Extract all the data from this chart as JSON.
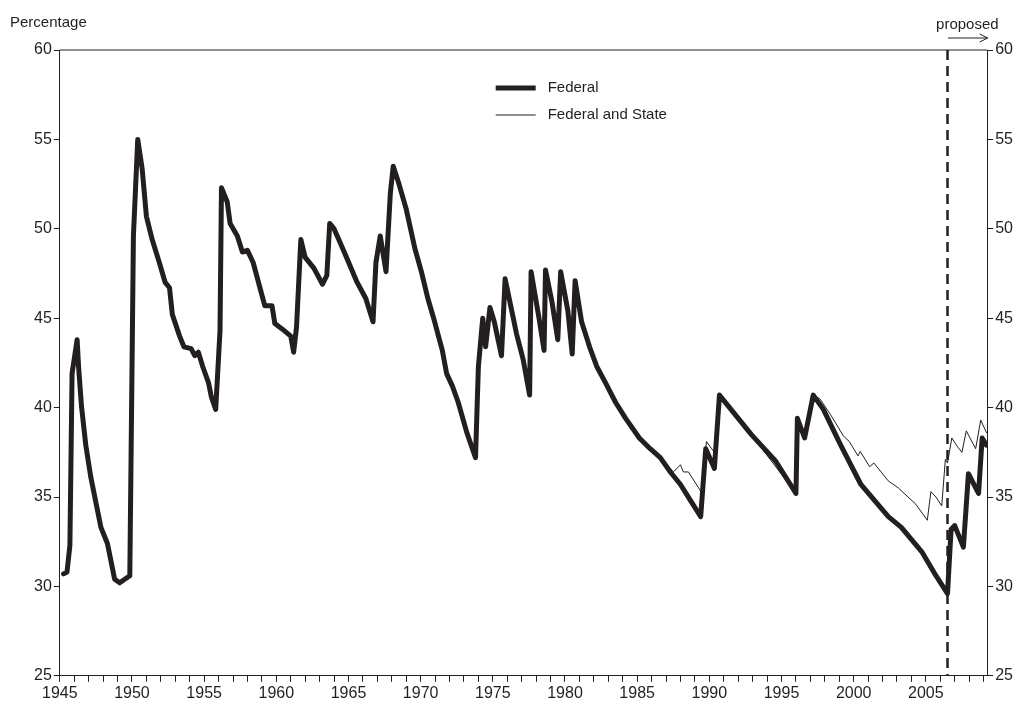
{
  "chart_data": {
    "type": "line",
    "ylabel": "Percentage",
    "xlim": [
      1945,
      2009.25
    ],
    "xticks": [
      1945,
      {
        "value": 1946,
        "label": null
      },
      {
        "value": 1947,
        "label": null
      },
      {
        "value": 1948,
        "label": null
      },
      {
        "value": 1949,
        "label": null
      },
      1950,
      {
        "value": 1951,
        "label": null
      },
      {
        "value": 1952,
        "label": null
      },
      {
        "value": 1953,
        "label": null
      },
      {
        "value": 1954,
        "label": null
      },
      1955,
      {
        "value": 1956,
        "label": null
      },
      {
        "value": 1957,
        "label": null
      },
      {
        "value": 1958,
        "label": null
      },
      {
        "value": 1959,
        "label": null
      },
      1960,
      {
        "value": 1961,
        "label": null
      },
      {
        "value": 1962,
        "label": null
      },
      {
        "value": 1963,
        "label": null
      },
      {
        "value": 1964,
        "label": null
      },
      1965,
      {
        "value": 1966,
        "label": null
      },
      {
        "value": 1967,
        "label": null
      },
      {
        "value": 1968,
        "label": null
      },
      {
        "value": 1969,
        "label": null
      },
      1970,
      {
        "value": 1971,
        "label": null
      },
      {
        "value": 1972,
        "label": null
      },
      {
        "value": 1973,
        "label": null
      },
      {
        "value": 1974,
        "label": null
      },
      1975,
      {
        "value": 1976,
        "label": null
      },
      {
        "value": 1977,
        "label": null
      },
      {
        "value": 1978,
        "label": null
      },
      {
        "value": 1979,
        "label": null
      },
      1980,
      {
        "value": 1981,
        "label": null
      },
      {
        "value": 1982,
        "label": null
      },
      {
        "value": 1983,
        "label": null
      },
      {
        "value": 1984,
        "label": null
      },
      1985,
      {
        "value": 1986,
        "label": null
      },
      {
        "value": 1987,
        "label": null
      },
      {
        "value": 1988,
        "label": null
      },
      {
        "value": 1989,
        "label": null
      },
      1990,
      {
        "value": 1991,
        "label": null
      },
      {
        "value": 1992,
        "label": null
      },
      {
        "value": 1993,
        "label": null
      },
      {
        "value": 1994,
        "label": null
      },
      1995,
      {
        "value": 1996,
        "label": null
      },
      {
        "value": 1997,
        "label": null
      },
      {
        "value": 1998,
        "label": null
      },
      {
        "value": 1999,
        "label": null
      },
      2000,
      {
        "value": 2001,
        "label": null
      },
      {
        "value": 2002,
        "label": null
      },
      {
        "value": 2003,
        "label": null
      },
      {
        "value": 2004,
        "label": null
      },
      2005,
      {
        "value": 2006,
        "label": null
      },
      {
        "value": 2007,
        "label": null
      },
      {
        "value": 2008,
        "label": null
      },
      {
        "value": 2009,
        "label": null
      }
    ],
    "ylim": [
      25,
      60
    ],
    "yticks": [
      25,
      30,
      35,
      40,
      45,
      50,
      55,
      60
    ],
    "y2lim": [
      25,
      60
    ],
    "y2ticks": [
      25,
      30,
      35,
      40,
      45,
      50,
      55,
      60
    ],
    "legend": "top",
    "grid": false,
    "ref_lines": [
      {
        "axis": "x",
        "value": 2006.5,
        "label": "proposed",
        "line_style": "dashed",
        "color": "#231f20"
      }
    ],
    "series": [
      {
        "name": "Federal",
        "color": "#231f20",
        "x": [
          1945.26,
          1945.5,
          1945.7,
          1945.85,
          1946.2,
          1946.3,
          1946.5,
          1946.8,
          1947.15,
          1947.85,
          1948.3,
          1948.8,
          1949.15,
          1949.5,
          1949.85,
          1950.1,
          1950.4,
          1950.7,
          1951.0,
          1951.4,
          1951.9,
          1952.3,
          1952.6,
          1952.8,
          1953.3,
          1953.6,
          1954.1,
          1954.35,
          1954.6,
          1954.9,
          1955.3,
          1955.5,
          1955.8,
          1956.1,
          1956.2,
          1956.6,
          1956.8,
          1957.3,
          1957.65,
          1958.0,
          1958.4,
          1958.8,
          1959.2,
          1959.7,
          1959.9,
          1960.4,
          1961.0,
          1961.2,
          1961.4,
          1961.7,
          1962.0,
          1962.6,
          1963.2,
          1963.5,
          1963.7,
          1964.0,
          1964.6,
          1965.6,
          1966.2,
          1966.7,
          1966.9,
          1967.2,
          1967.6,
          1967.9,
          1968.1,
          1968.5,
          1969.0,
          1969.6,
          1970.05,
          1970.5,
          1970.9,
          1971.5,
          1971.8,
          1972.2,
          1972.6,
          1973.2,
          1973.8,
          1974.0,
          1974.3,
          1974.5,
          1974.8,
          1975.1,
          1975.6,
          1975.85,
          1976.65,
          1977.1,
          1977.55,
          1977.65,
          1978.2,
          1978.55,
          1978.65,
          1979.1,
          1979.5,
          1979.7,
          1980.2,
          1980.5,
          1980.7,
          1981.15,
          1981.7,
          1982.2,
          1982.8,
          1983.5,
          1984.2,
          1985.15,
          1985.9,
          1986.6,
          1987.3,
          1988.0,
          1988.7,
          1989.4,
          1989.75,
          1990.35,
          1990.7,
          1992.2,
          1992.9,
          1994.6,
          1996.0,
          1996.1,
          1996.6,
          1997.2,
          1997.9,
          1999.1,
          2000.5,
          2002.4,
          2003.3,
          2004.75,
          2005.7,
          2006.5,
          2006.75,
          2007.0,
          2007.6,
          2007.95,
          2008.65,
          2008.9,
          2009.2
        ],
        "values": [
          30.7,
          30.8,
          32.3,
          41.9,
          43.8,
          42.3,
          40.1,
          37.9,
          36.1,
          33.3,
          32.4,
          30.4,
          30.2,
          30.4,
          30.6,
          49.6,
          55.0,
          53.4,
          50.7,
          49.4,
          48.1,
          47.0,
          46.7,
          45.2,
          44.0,
          43.4,
          43.3,
          42.9,
          43.1,
          42.3,
          41.4,
          40.6,
          39.9,
          44.3,
          52.3,
          51.5,
          50.3,
          49.6,
          48.7,
          48.8,
          48.1,
          46.9,
          45.7,
          45.7,
          44.7,
          44.4,
          44.0,
          43.1,
          44.5,
          49.4,
          48.4,
          47.8,
          46.9,
          47.4,
          50.3,
          50.0,
          48.9,
          47.0,
          46.1,
          44.8,
          48.1,
          49.6,
          47.6,
          52.0,
          53.5,
          52.5,
          51.1,
          48.9,
          47.6,
          46.1,
          45.0,
          43.2,
          41.9,
          41.2,
          40.3,
          38.6,
          37.2,
          42.3,
          45.0,
          43.4,
          45.6,
          44.8,
          42.9,
          47.2,
          44.1,
          42.7,
          40.7,
          47.6,
          45.0,
          43.2,
          47.7,
          45.9,
          43.8,
          47.6,
          45.4,
          43.0,
          47.1,
          44.8,
          43.4,
          42.3,
          41.4,
          40.3,
          39.4,
          38.3,
          37.7,
          37.2,
          36.4,
          35.7,
          34.8,
          33.9,
          37.7,
          36.6,
          40.7,
          39.2,
          38.5,
          37.0,
          35.2,
          39.4,
          38.3,
          40.7,
          39.9,
          37.9,
          35.7,
          33.9,
          33.3,
          31.9,
          30.6,
          29.6,
          33.2,
          33.4,
          32.2,
          36.3,
          35.2,
          38.3,
          37.9
        ]
      },
      {
        "name": "Federal and State",
        "color": "#231f20",
        "x": [
          1986.6,
          1987.5,
          1988.0,
          1988.2,
          1988.55,
          1989.5,
          1989.8,
          1990.35,
          1990.7,
          1992.9,
          1996.0,
          1996.1,
          1996.6,
          1997.2,
          1997.65,
          1998.4,
          1999.3,
          1999.7,
          2000.3,
          2000.45,
          2001.1,
          2001.4,
          2002.4,
          2003.1,
          2004.3,
          2005.1,
          2005.35,
          2005.7,
          2006.1,
          2006.35,
          2006.5,
          2006.8,
          2007.2,
          2007.5,
          2007.8,
          2008.45,
          2008.8,
          2009.2
        ],
        "values": [
          37.2,
          36.4,
          36.8,
          36.4,
          36.4,
          35.2,
          38.1,
          37.5,
          40.7,
          38.5,
          35.2,
          39.4,
          38.3,
          40.7,
          40.5,
          39.6,
          38.4,
          38.1,
          37.3,
          37.55,
          36.7,
          36.9,
          35.9,
          35.5,
          34.6,
          33.7,
          35.3,
          35.0,
          34.5,
          37.1,
          36.9,
          38.3,
          37.8,
          37.5,
          38.7,
          37.7,
          39.3,
          38.6
        ]
      }
    ]
  }
}
